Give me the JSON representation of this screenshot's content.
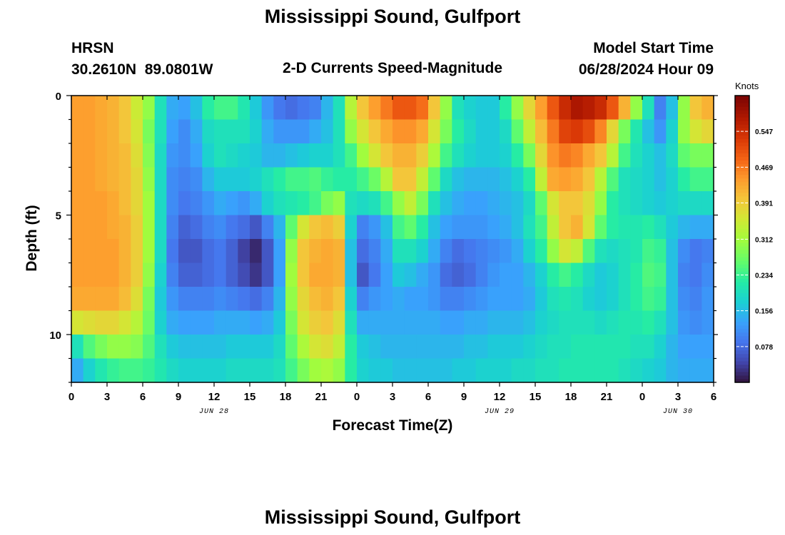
{
  "page": {
    "title": "Mississippi Sound, Gulfport",
    "bottom_title": "Mississippi Sound, Gulfport",
    "station_code": "HRSN",
    "station_coords": "30.2610N  89.0801W",
    "plot_title": "2-D Currents Speed-Magnitude",
    "model_label": "Model Start Time",
    "model_time": "06/28/2024 Hour 09"
  },
  "chart_data": {
    "type": "heatmap",
    "xlabel": "Forecast Time(Z)",
    "ylabel": "Depth (ft)",
    "colorbar_label": "Knots",
    "colorbar_ticks": [
      "0.078",
      "0.156",
      "0.234",
      "0.312",
      "0.391",
      "0.469",
      "0.547"
    ],
    "colorbar_range": [
      0,
      0.625
    ],
    "x_tick_labels": [
      "0",
      "3",
      "6",
      "9",
      "12",
      "15",
      "18",
      "21",
      "0",
      "3",
      "6",
      "9",
      "12",
      "15",
      "18",
      "21",
      "0",
      "3",
      "6"
    ],
    "date_labels": [
      "JUN 28",
      "JUN 29",
      "JUN 30"
    ],
    "date_label_hours": [
      12,
      36,
      51
    ],
    "y_tick_labels": [
      "0",
      "5",
      "10"
    ],
    "y_tick_values": [
      0,
      5,
      10
    ],
    "xlim_hours": [
      0,
      54
    ],
    "ylim_ft": [
      0,
      12
    ],
    "x_hours": [
      0,
      1,
      2,
      3,
      4,
      5,
      6,
      7,
      8,
      9,
      10,
      11,
      12,
      13,
      14,
      15,
      16,
      17,
      18,
      19,
      20,
      21,
      22,
      23,
      24,
      25,
      26,
      27,
      28,
      29,
      30,
      31,
      32,
      33,
      34,
      35,
      36,
      37,
      38,
      39,
      40,
      41,
      42,
      43,
      44,
      45,
      46,
      47,
      48,
      49,
      50,
      51,
      52,
      53
    ],
    "depth_ft": [
      0.5,
      1.5,
      2.5,
      3.5,
      4.5,
      5.5,
      6.5,
      7.5,
      8.5,
      9.5,
      10.5,
      11.5
    ],
    "values": [
      [
        0.44,
        0.44,
        0.43,
        0.42,
        0.4,
        0.35,
        0.3,
        0.2,
        0.14,
        0.13,
        0.16,
        0.22,
        0.24,
        0.24,
        0.21,
        0.17,
        0.12,
        0.09,
        0.08,
        0.09,
        0.1,
        0.15,
        0.2,
        0.33,
        0.4,
        0.44,
        0.47,
        0.5,
        0.5,
        0.48,
        0.4,
        0.3,
        0.2,
        0.18,
        0.17,
        0.17,
        0.22,
        0.3,
        0.38,
        0.44,
        0.5,
        0.55,
        0.58,
        0.57,
        0.55,
        0.5,
        0.42,
        0.3,
        0.2,
        0.1,
        0.16,
        0.3,
        0.4,
        0.42
      ],
      [
        0.44,
        0.44,
        0.43,
        0.42,
        0.4,
        0.36,
        0.28,
        0.2,
        0.13,
        0.11,
        0.14,
        0.19,
        0.2,
        0.2,
        0.2,
        0.18,
        0.14,
        0.12,
        0.12,
        0.12,
        0.14,
        0.16,
        0.2,
        0.3,
        0.36,
        0.4,
        0.43,
        0.45,
        0.45,
        0.43,
        0.36,
        0.28,
        0.22,
        0.19,
        0.17,
        0.17,
        0.19,
        0.26,
        0.34,
        0.41,
        0.47,
        0.52,
        0.53,
        0.51,
        0.46,
        0.38,
        0.28,
        0.21,
        0.16,
        0.12,
        0.18,
        0.3,
        0.36,
        0.38
      ],
      [
        0.44,
        0.44,
        0.43,
        0.42,
        0.41,
        0.37,
        0.29,
        0.19,
        0.12,
        0.11,
        0.13,
        0.18,
        0.2,
        0.19,
        0.18,
        0.17,
        0.15,
        0.15,
        0.16,
        0.17,
        0.18,
        0.18,
        0.2,
        0.24,
        0.31,
        0.36,
        0.4,
        0.42,
        0.42,
        0.39,
        0.32,
        0.24,
        0.2,
        0.18,
        0.17,
        0.17,
        0.18,
        0.22,
        0.28,
        0.38,
        0.45,
        0.47,
        0.46,
        0.43,
        0.4,
        0.33,
        0.24,
        0.2,
        0.18,
        0.16,
        0.19,
        0.26,
        0.28,
        0.28
      ],
      [
        0.44,
        0.44,
        0.43,
        0.42,
        0.41,
        0.38,
        0.3,
        0.19,
        0.11,
        0.1,
        0.11,
        0.15,
        0.17,
        0.17,
        0.17,
        0.18,
        0.2,
        0.22,
        0.24,
        0.24,
        0.25,
        0.23,
        0.22,
        0.22,
        0.24,
        0.27,
        0.33,
        0.4,
        0.4,
        0.34,
        0.26,
        0.19,
        0.16,
        0.15,
        0.15,
        0.15,
        0.16,
        0.18,
        0.22,
        0.34,
        0.43,
        0.44,
        0.43,
        0.4,
        0.33,
        0.25,
        0.2,
        0.19,
        0.18,
        0.16,
        0.18,
        0.22,
        0.24,
        0.24
      ],
      [
        0.44,
        0.44,
        0.44,
        0.43,
        0.41,
        0.38,
        0.31,
        0.19,
        0.11,
        0.09,
        0.1,
        0.12,
        0.14,
        0.13,
        0.12,
        0.14,
        0.18,
        0.2,
        0.21,
        0.22,
        0.24,
        0.28,
        0.3,
        0.2,
        0.19,
        0.2,
        0.24,
        0.3,
        0.34,
        0.28,
        0.2,
        0.16,
        0.14,
        0.13,
        0.13,
        0.14,
        0.15,
        0.16,
        0.19,
        0.26,
        0.36,
        0.4,
        0.4,
        0.37,
        0.3,
        0.22,
        0.2,
        0.19,
        0.18,
        0.17,
        0.18,
        0.19,
        0.19,
        0.19
      ],
      [
        0.44,
        0.44,
        0.44,
        0.43,
        0.42,
        0.39,
        0.31,
        0.19,
        0.1,
        0.07,
        0.08,
        0.1,
        0.11,
        0.09,
        0.08,
        0.06,
        0.1,
        0.15,
        0.26,
        0.36,
        0.4,
        0.41,
        0.39,
        0.18,
        0.1,
        0.12,
        0.16,
        0.24,
        0.26,
        0.22,
        0.16,
        0.13,
        0.12,
        0.12,
        0.12,
        0.13,
        0.14,
        0.16,
        0.2,
        0.24,
        0.34,
        0.4,
        0.42,
        0.36,
        0.26,
        0.22,
        0.21,
        0.21,
        0.22,
        0.2,
        0.17,
        0.15,
        0.14,
        0.14
      ],
      [
        0.44,
        0.44,
        0.44,
        0.44,
        0.42,
        0.39,
        0.31,
        0.19,
        0.09,
        0.06,
        0.06,
        0.08,
        0.09,
        0.07,
        0.04,
        0.02,
        0.06,
        0.13,
        0.3,
        0.4,
        0.42,
        0.43,
        0.42,
        0.16,
        0.08,
        0.1,
        0.14,
        0.2,
        0.2,
        0.18,
        0.14,
        0.1,
        0.08,
        0.09,
        0.1,
        0.11,
        0.12,
        0.14,
        0.18,
        0.22,
        0.3,
        0.36,
        0.34,
        0.25,
        0.2,
        0.19,
        0.2,
        0.21,
        0.24,
        0.23,
        0.16,
        0.11,
        0.09,
        0.1
      ],
      [
        0.44,
        0.44,
        0.44,
        0.44,
        0.42,
        0.39,
        0.3,
        0.18,
        0.1,
        0.07,
        0.07,
        0.08,
        0.09,
        0.07,
        0.05,
        0.03,
        0.06,
        0.13,
        0.31,
        0.4,
        0.43,
        0.43,
        0.42,
        0.16,
        0.06,
        0.09,
        0.13,
        0.17,
        0.16,
        0.14,
        0.12,
        0.08,
        0.07,
        0.08,
        0.1,
        0.12,
        0.13,
        0.13,
        0.15,
        0.18,
        0.22,
        0.24,
        0.22,
        0.19,
        0.17,
        0.18,
        0.2,
        0.22,
        0.25,
        0.24,
        0.16,
        0.1,
        0.09,
        0.11
      ],
      [
        0.43,
        0.43,
        0.43,
        0.43,
        0.41,
        0.37,
        0.28,
        0.17,
        0.12,
        0.1,
        0.1,
        0.1,
        0.11,
        0.1,
        0.09,
        0.08,
        0.1,
        0.15,
        0.3,
        0.38,
        0.41,
        0.42,
        0.4,
        0.18,
        0.1,
        0.12,
        0.13,
        0.14,
        0.13,
        0.13,
        0.12,
        0.1,
        0.1,
        0.11,
        0.12,
        0.13,
        0.13,
        0.13,
        0.14,
        0.17,
        0.2,
        0.21,
        0.2,
        0.18,
        0.17,
        0.18,
        0.2,
        0.22,
        0.24,
        0.23,
        0.16,
        0.11,
        0.1,
        0.12
      ],
      [
        0.36,
        0.37,
        0.38,
        0.38,
        0.36,
        0.33,
        0.27,
        0.18,
        0.14,
        0.13,
        0.13,
        0.13,
        0.14,
        0.14,
        0.14,
        0.13,
        0.14,
        0.17,
        0.28,
        0.36,
        0.39,
        0.4,
        0.37,
        0.2,
        0.14,
        0.14,
        0.14,
        0.14,
        0.14,
        0.14,
        0.14,
        0.13,
        0.13,
        0.14,
        0.14,
        0.15,
        0.15,
        0.15,
        0.16,
        0.18,
        0.19,
        0.2,
        0.2,
        0.2,
        0.19,
        0.2,
        0.21,
        0.21,
        0.22,
        0.2,
        0.16,
        0.12,
        0.11,
        0.12
      ],
      [
        0.2,
        0.25,
        0.28,
        0.3,
        0.3,
        0.29,
        0.25,
        0.2,
        0.17,
        0.16,
        0.16,
        0.16,
        0.16,
        0.17,
        0.17,
        0.17,
        0.17,
        0.19,
        0.26,
        0.32,
        0.36,
        0.37,
        0.34,
        0.22,
        0.17,
        0.16,
        0.15,
        0.15,
        0.15,
        0.15,
        0.15,
        0.15,
        0.15,
        0.16,
        0.16,
        0.17,
        0.17,
        0.17,
        0.18,
        0.19,
        0.2,
        0.2,
        0.21,
        0.21,
        0.21,
        0.21,
        0.21,
        0.2,
        0.2,
        0.18,
        0.15,
        0.13,
        0.13,
        0.13
      ],
      [
        0.14,
        0.18,
        0.21,
        0.23,
        0.24,
        0.24,
        0.23,
        0.21,
        0.19,
        0.18,
        0.18,
        0.18,
        0.18,
        0.19,
        0.19,
        0.19,
        0.19,
        0.2,
        0.24,
        0.28,
        0.31,
        0.32,
        0.3,
        0.22,
        0.18,
        0.17,
        0.17,
        0.16,
        0.16,
        0.16,
        0.16,
        0.16,
        0.17,
        0.17,
        0.18,
        0.18,
        0.18,
        0.19,
        0.19,
        0.2,
        0.2,
        0.21,
        0.21,
        0.21,
        0.21,
        0.21,
        0.2,
        0.19,
        0.18,
        0.17,
        0.15,
        0.14,
        0.14,
        0.14
      ]
    ]
  }
}
